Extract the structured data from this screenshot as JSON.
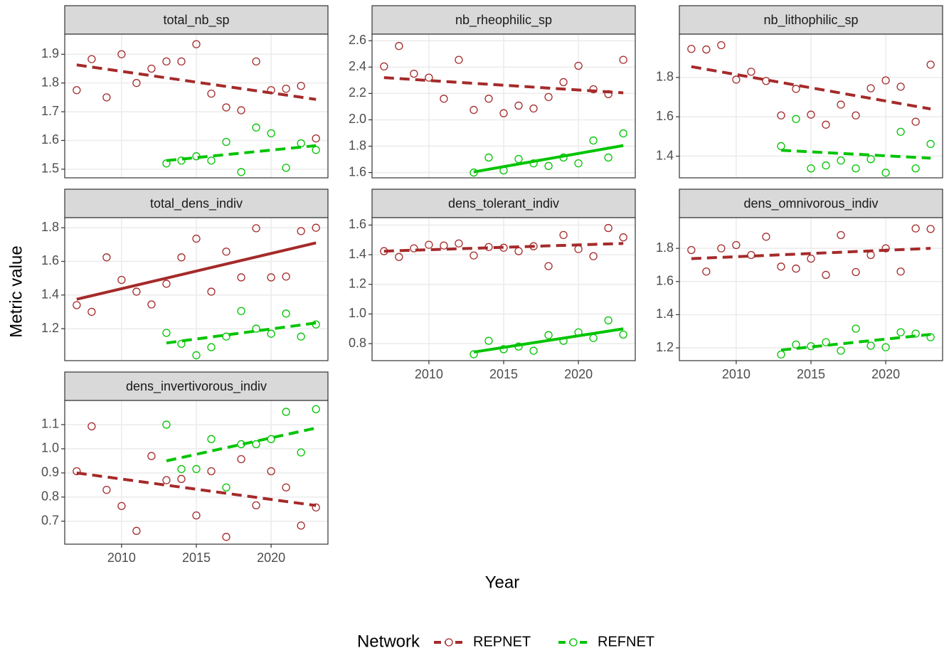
{
  "xlabel": "Year",
  "ylabel": "Metric value",
  "legend_title": "Network",
  "xlim": [
    2006.2,
    2023.8
  ],
  "xticks": [
    2010,
    2015,
    2020
  ],
  "chart_data": [
    {
      "type": "scatter",
      "title": "total_nb_sp",
      "ylim": [
        1.47,
        1.97
      ],
      "yticks": [
        1.5,
        1.6,
        1.7,
        1.8,
        1.9
      ],
      "grid": true,
      "series": [
        {
          "name": "REPNET",
          "color": "#a52a2a",
          "x": [
            2007,
            2008,
            2009,
            2010,
            2011,
            2012,
            2013,
            2014,
            2015,
            2016,
            2017,
            2018,
            2019,
            2020,
            2021,
            2022,
            2023
          ],
          "values": [
            1.775,
            1.883,
            1.75,
            1.9,
            1.8,
            1.85,
            1.875,
            1.875,
            1.935,
            1.763,
            1.715,
            1.705,
            1.875,
            1.775,
            1.78,
            1.79,
            1.607
          ],
          "trend": {
            "x": [
              2007,
              2023
            ],
            "values": [
              1.863,
              1.743
            ],
            "linestyle": "dashed"
          }
        },
        {
          "name": "REFNET",
          "color": "#00c400",
          "x": [
            2013,
            2014,
            2015,
            2016,
            2017,
            2018,
            2019,
            2020,
            2021,
            2022,
            2023
          ],
          "values": [
            1.52,
            1.53,
            1.545,
            1.53,
            1.595,
            1.49,
            1.645,
            1.625,
            1.505,
            1.59,
            1.567
          ],
          "trend": {
            "x": [
              2013,
              2023
            ],
            "values": [
              1.53,
              1.582
            ],
            "linestyle": "dashed"
          }
        }
      ]
    },
    {
      "type": "scatter",
      "title": "nb_rheophilic_sp",
      "ylim": [
        1.56,
        2.65
      ],
      "yticks": [
        1.6,
        1.8,
        {
          "value": 2,
          "label": "2.0"
        },
        2.2,
        2.4,
        2.6
      ],
      "grid": true,
      "series": [
        {
          "name": "REPNET",
          "color": "#a52a2a",
          "x": [
            2007,
            2008,
            2009,
            2010,
            2011,
            2012,
            2013,
            2014,
            2015,
            2016,
            2017,
            2018,
            2019,
            2020,
            2021,
            2022,
            2023
          ],
          "values": [
            2.405,
            2.56,
            2.35,
            2.32,
            2.16,
            2.455,
            2.075,
            2.16,
            2.05,
            2.108,
            2.086,
            2.173,
            2.286,
            2.41,
            2.232,
            2.195,
            2.455
          ],
          "trend": {
            "x": [
              2007,
              2023
            ],
            "values": [
              2.32,
              2.205
            ],
            "linestyle": "dashed"
          }
        },
        {
          "name": "REFNET",
          "color": "#00c400",
          "x": [
            2013,
            2014,
            2015,
            2016,
            2017,
            2018,
            2019,
            2020,
            2021,
            2022,
            2023
          ],
          "values": [
            1.6,
            1.714,
            1.616,
            1.703,
            1.67,
            1.65,
            1.714,
            1.67,
            1.843,
            1.714,
            1.897
          ],
          "trend": {
            "x": [
              2013,
              2023
            ],
            "values": [
              1.605,
              1.805
            ],
            "linestyle": "solid"
          }
        }
      ]
    },
    {
      "type": "scatter",
      "title": "nb_lithophilic_sp",
      "ylim": [
        1.29,
        2.02
      ],
      "yticks": [
        1.4,
        1.6,
        1.8
      ],
      "grid": true,
      "series": [
        {
          "name": "REPNET",
          "color": "#a52a2a",
          "x": [
            2007,
            2008,
            2009,
            2010,
            2011,
            2012,
            2013,
            2014,
            2015,
            2016,
            2017,
            2018,
            2019,
            2020,
            2021,
            2022,
            2023
          ],
          "values": [
            1.945,
            1.942,
            1.964,
            1.789,
            1.829,
            1.782,
            1.607,
            1.742,
            1.611,
            1.56,
            1.662,
            1.607,
            1.745,
            1.785,
            1.753,
            1.575,
            1.865
          ],
          "trend": {
            "x": [
              2007,
              2023
            ],
            "values": [
              1.855,
              1.64
            ],
            "linestyle": "dashed"
          }
        },
        {
          "name": "REFNET",
          "color": "#00c400",
          "x": [
            2013,
            2014,
            2015,
            2016,
            2017,
            2018,
            2019,
            2020,
            2021,
            2022,
            2023
          ],
          "values": [
            1.451,
            1.589,
            1.338,
            1.353,
            1.378,
            1.338,
            1.385,
            1.316,
            1.524,
            1.338,
            1.462
          ],
          "trend": {
            "x": [
              2013,
              2023
            ],
            "values": [
              1.43,
              1.39
            ],
            "linestyle": "dashed"
          }
        }
      ]
    },
    {
      "type": "scatter",
      "title": "total_dens_indiv",
      "ylim": [
        1.01,
        1.86
      ],
      "yticks": [
        1.2,
        1.4,
        1.6,
        1.8
      ],
      "grid": true,
      "series": [
        {
          "name": "REPNET",
          "color": "#a52a2a",
          "x": [
            2007,
            2008,
            2009,
            2010,
            2011,
            2012,
            2013,
            2014,
            2015,
            2016,
            2017,
            2018,
            2019,
            2020,
            2021,
            2022,
            2023
          ],
          "values": [
            1.34,
            1.3,
            1.624,
            1.49,
            1.42,
            1.344,
            1.467,
            1.624,
            1.735,
            1.42,
            1.658,
            1.505,
            1.797,
            1.505,
            1.51,
            1.78,
            1.8
          ],
          "trend": {
            "x": [
              2007,
              2023
            ],
            "values": [
              1.375,
              1.71
            ],
            "linestyle": "solid"
          }
        },
        {
          "name": "REFNET",
          "color": "#00c400",
          "x": [
            2013,
            2014,
            2015,
            2016,
            2017,
            2018,
            2019,
            2020,
            2021,
            2022,
            2023
          ],
          "values": [
            1.175,
            1.11,
            1.042,
            1.09,
            1.153,
            1.305,
            1.2,
            1.17,
            1.29,
            1.153,
            1.225
          ],
          "trend": {
            "x": [
              2013,
              2023
            ],
            "values": [
              1.115,
              1.234
            ],
            "linestyle": "dashed"
          }
        }
      ]
    },
    {
      "type": "scatter",
      "title": "dens_tolerant_indiv",
      "ylim": [
        0.685,
        1.65
      ],
      "yticks": [
        0.8,
        {
          "value": 1,
          "label": "1.0"
        },
        1.2,
        1.4,
        1.6
      ],
      "grid": true,
      "series": [
        {
          "name": "REPNET",
          "color": "#a52a2a",
          "x": [
            2007,
            2008,
            2009,
            2010,
            2011,
            2012,
            2013,
            2014,
            2015,
            2016,
            2017,
            2018,
            2019,
            2020,
            2021,
            2022,
            2023
          ],
          "values": [
            1.424,
            1.385,
            1.443,
            1.467,
            1.462,
            1.476,
            1.395,
            1.452,
            1.447,
            1.424,
            1.457,
            1.323,
            1.533,
            1.438,
            1.39,
            1.58,
            1.517
          ],
          "trend": {
            "x": [
              2007,
              2023
            ],
            "values": [
              1.424,
              1.476
            ],
            "linestyle": "dashed"
          }
        },
        {
          "name": "REFNET",
          "color": "#00c400",
          "x": [
            2013,
            2014,
            2015,
            2016,
            2017,
            2018,
            2019,
            2020,
            2021,
            2022,
            2023
          ],
          "values": [
            0.728,
            0.819,
            0.762,
            0.78,
            0.752,
            0.857,
            0.819,
            0.876,
            0.838,
            0.957,
            0.861
          ],
          "trend": {
            "x": [
              2013,
              2023
            ],
            "values": [
              0.743,
              0.9
            ],
            "linestyle": "solid"
          }
        }
      ]
    },
    {
      "type": "scatter",
      "title": "dens_omnivorous_indiv",
      "ylim": [
        1.123,
        1.985
      ],
      "yticks": [
        1.2,
        1.4,
        1.6,
        1.8
      ],
      "grid": true,
      "series": [
        {
          "name": "REPNET",
          "color": "#a52a2a",
          "x": [
            2007,
            2008,
            2009,
            2010,
            2011,
            2012,
            2013,
            2014,
            2015,
            2016,
            2017,
            2018,
            2019,
            2020,
            2021,
            2022,
            2023
          ],
          "values": [
            1.79,
            1.66,
            1.8,
            1.82,
            1.76,
            1.87,
            1.69,
            1.678,
            1.738,
            1.64,
            1.88,
            1.657,
            1.76,
            1.8,
            1.66,
            1.92,
            1.917
          ],
          "trend": {
            "x": [
              2007,
              2023
            ],
            "values": [
              1.738,
              1.8
            ],
            "linestyle": "dashed"
          }
        },
        {
          "name": "REFNET",
          "color": "#00c400",
          "x": [
            2013,
            2014,
            2015,
            2016,
            2017,
            2018,
            2019,
            2020,
            2021,
            2022,
            2023
          ],
          "values": [
            1.16,
            1.22,
            1.21,
            1.234,
            1.183,
            1.316,
            1.213,
            1.204,
            1.294,
            1.286,
            1.264
          ],
          "trend": {
            "x": [
              2013,
              2023
            ],
            "values": [
              1.187,
              1.281
            ],
            "linestyle": "dashed"
          }
        }
      ]
    },
    {
      "type": "scatter",
      "title": "dens_invertivorous_indiv",
      "ylim": [
        0.605,
        1.2
      ],
      "yticks": [
        0.7,
        0.8,
        0.9,
        {
          "value": 1,
          "label": "1.0"
        },
        1.1
      ],
      "grid": true,
      "series": [
        {
          "name": "REPNET",
          "color": "#a52a2a",
          "x": [
            2007,
            2008,
            2009,
            2010,
            2011,
            2012,
            2013,
            2014,
            2015,
            2016,
            2017,
            2018,
            2019,
            2020,
            2021,
            2022,
            2023
          ],
          "values": [
            0.907,
            1.093,
            0.83,
            0.763,
            0.66,
            0.97,
            0.87,
            0.875,
            0.724,
            0.907,
            0.635,
            0.957,
            0.766,
            0.907,
            0.84,
            0.682,
            0.757
          ],
          "trend": {
            "x": [
              2007,
              2023
            ],
            "values": [
              0.9,
              0.765
            ],
            "linestyle": "dashed"
          }
        },
        {
          "name": "REFNET",
          "color": "#00c400",
          "x": [
            2013,
            2014,
            2015,
            2016,
            2017,
            2018,
            2019,
            2020,
            2021,
            2022,
            2023
          ],
          "values": [
            1.1,
            0.916,
            0.916,
            1.04,
            0.84,
            1.019,
            1.019,
            1.04,
            1.153,
            0.985,
            1.164
          ],
          "trend": {
            "x": [
              2013,
              2023
            ],
            "values": [
              0.95,
              1.086
            ],
            "linestyle": "dashed"
          }
        }
      ]
    }
  ]
}
